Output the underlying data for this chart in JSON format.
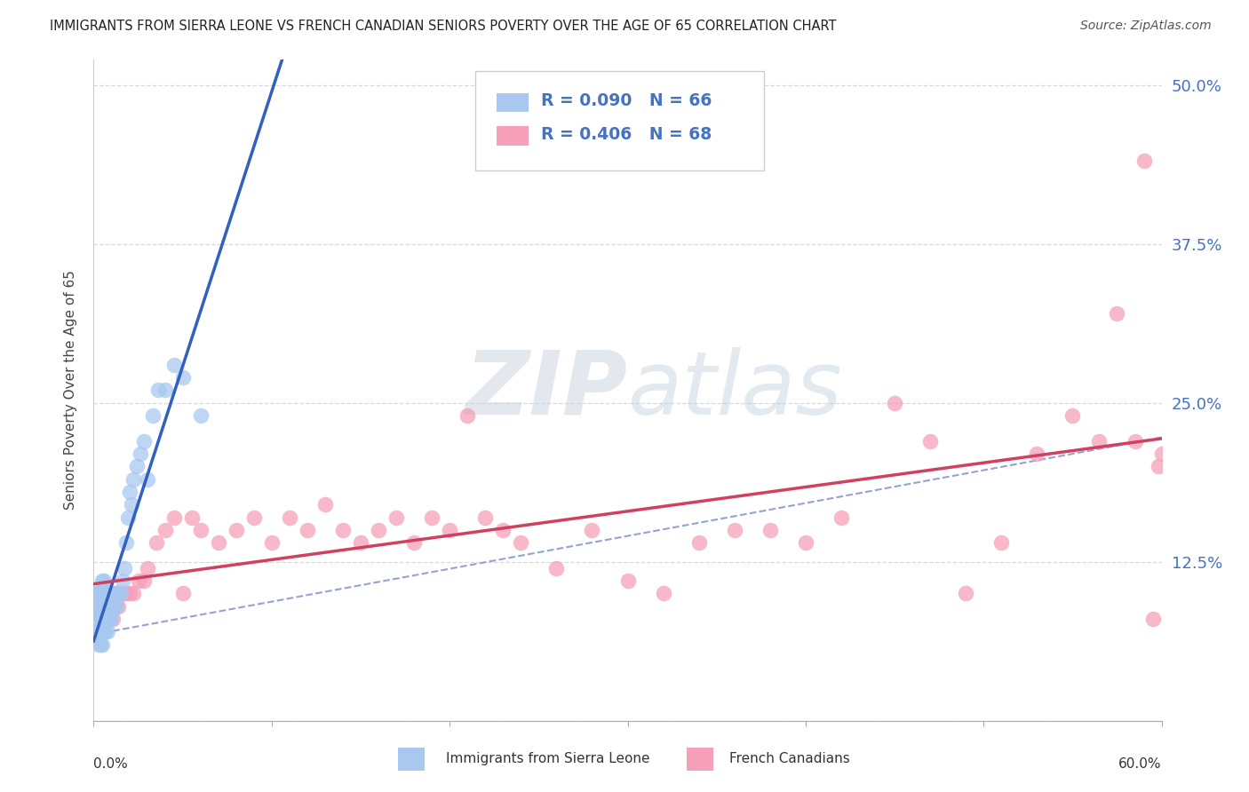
{
  "title": "IMMIGRANTS FROM SIERRA LEONE VS FRENCH CANADIAN SENIORS POVERTY OVER THE AGE OF 65 CORRELATION CHART",
  "source": "Source: ZipAtlas.com",
  "ylabel": "Seniors Poverty Over the Age of 65",
  "xlim": [
    0.0,
    0.6
  ],
  "ylim": [
    0.0,
    0.52
  ],
  "ytick_vals": [
    0.0,
    0.125,
    0.25,
    0.375,
    0.5
  ],
  "ytick_labels_right": [
    "",
    "12.5%",
    "25.0%",
    "37.5%",
    "50.0%"
  ],
  "legend_label1": "Immigrants from Sierra Leone",
  "legend_label2": "French Canadians",
  "R1": 0.09,
  "N1": 66,
  "R2": 0.406,
  "N2": 68,
  "color1": "#a8c8f0",
  "color2": "#f5a0b8",
  "line_color1": "#3060c0",
  "line_color2": "#d04060",
  "dash_color": "#8899cc",
  "tick_label_color": "#4472c4",
  "watermark_color": "#ccd8e8",
  "grid_color": "#d8d8e0",
  "sl_x": [
    0.001,
    0.001,
    0.002,
    0.002,
    0.002,
    0.002,
    0.003,
    0.003,
    0.003,
    0.003,
    0.003,
    0.004,
    0.004,
    0.004,
    0.004,
    0.004,
    0.005,
    0.005,
    0.005,
    0.005,
    0.005,
    0.005,
    0.006,
    0.006,
    0.006,
    0.006,
    0.006,
    0.007,
    0.007,
    0.007,
    0.007,
    0.008,
    0.008,
    0.008,
    0.008,
    0.009,
    0.009,
    0.009,
    0.01,
    0.01,
    0.01,
    0.011,
    0.011,
    0.012,
    0.012,
    0.013,
    0.013,
    0.014,
    0.015,
    0.016,
    0.017,
    0.018,
    0.019,
    0.02,
    0.021,
    0.022,
    0.024,
    0.026,
    0.028,
    0.03,
    0.033,
    0.036,
    0.04,
    0.045,
    0.05,
    0.06
  ],
  "sl_y": [
    0.09,
    0.1,
    0.07,
    0.08,
    0.09,
    0.1,
    0.06,
    0.07,
    0.08,
    0.09,
    0.1,
    0.06,
    0.07,
    0.08,
    0.09,
    0.1,
    0.06,
    0.07,
    0.08,
    0.09,
    0.1,
    0.11,
    0.07,
    0.08,
    0.09,
    0.1,
    0.11,
    0.07,
    0.08,
    0.09,
    0.1,
    0.07,
    0.08,
    0.09,
    0.1,
    0.08,
    0.09,
    0.1,
    0.08,
    0.09,
    0.1,
    0.09,
    0.1,
    0.09,
    0.1,
    0.09,
    0.1,
    0.1,
    0.1,
    0.11,
    0.12,
    0.14,
    0.16,
    0.18,
    0.17,
    0.19,
    0.2,
    0.21,
    0.22,
    0.19,
    0.24,
    0.26,
    0.26,
    0.28,
    0.27,
    0.24
  ],
  "fc_x": [
    0.001,
    0.002,
    0.003,
    0.004,
    0.005,
    0.006,
    0.007,
    0.008,
    0.009,
    0.01,
    0.011,
    0.012,
    0.013,
    0.014,
    0.015,
    0.016,
    0.018,
    0.02,
    0.022,
    0.025,
    0.028,
    0.03,
    0.035,
    0.04,
    0.045,
    0.05,
    0.055,
    0.06,
    0.07,
    0.08,
    0.09,
    0.1,
    0.11,
    0.12,
    0.13,
    0.14,
    0.15,
    0.16,
    0.17,
    0.18,
    0.19,
    0.2,
    0.21,
    0.22,
    0.23,
    0.24,
    0.26,
    0.28,
    0.3,
    0.32,
    0.34,
    0.36,
    0.38,
    0.4,
    0.42,
    0.45,
    0.47,
    0.49,
    0.51,
    0.53,
    0.55,
    0.565,
    0.575,
    0.585,
    0.59,
    0.595,
    0.598,
    0.6
  ],
  "fc_y": [
    0.09,
    0.1,
    0.09,
    0.1,
    0.09,
    0.1,
    0.09,
    0.1,
    0.09,
    0.1,
    0.08,
    0.09,
    0.1,
    0.09,
    0.1,
    0.1,
    0.1,
    0.1,
    0.1,
    0.11,
    0.11,
    0.12,
    0.14,
    0.15,
    0.16,
    0.1,
    0.16,
    0.15,
    0.14,
    0.15,
    0.16,
    0.14,
    0.16,
    0.15,
    0.17,
    0.15,
    0.14,
    0.15,
    0.16,
    0.14,
    0.16,
    0.15,
    0.24,
    0.16,
    0.15,
    0.14,
    0.12,
    0.15,
    0.11,
    0.1,
    0.14,
    0.15,
    0.15,
    0.14,
    0.16,
    0.25,
    0.22,
    0.1,
    0.14,
    0.21,
    0.24,
    0.22,
    0.32,
    0.22,
    0.44,
    0.08,
    0.2,
    0.21
  ]
}
